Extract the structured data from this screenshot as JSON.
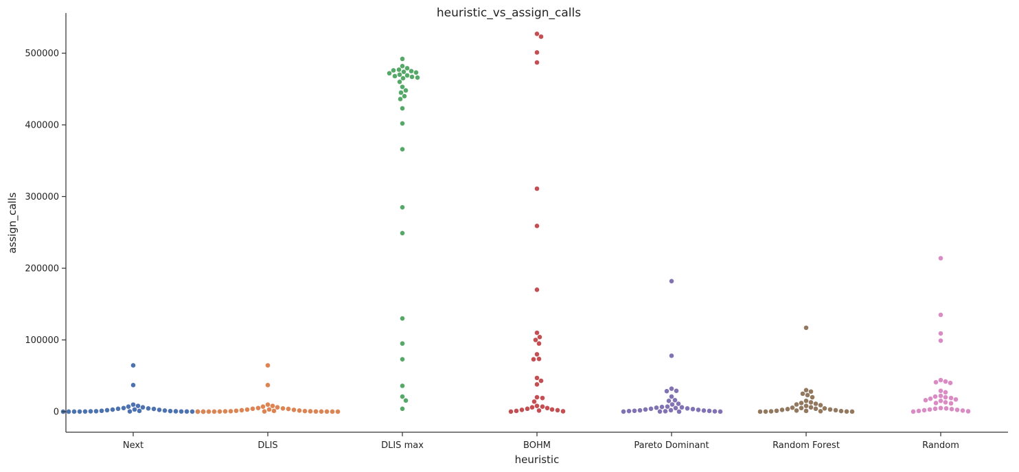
{
  "chart_data": {
    "type": "scatter",
    "subtype": "swarm",
    "title": "heuristic_vs_assign_calls",
    "xlabel": "heuristic",
    "ylabel": "assign_calls",
    "ylim": [
      -28000,
      553000
    ],
    "yticks": [
      0,
      100000,
      200000,
      300000,
      400000,
      500000
    ],
    "ytick_labels": [
      "0",
      "100000",
      "200000",
      "300000",
      "400000",
      "500000"
    ],
    "categories": [
      "Next",
      "DLIS",
      "DLIS max",
      "BOHM",
      "Pareto Dominant",
      "Random Forest",
      "Random"
    ],
    "colors": [
      "#4c72b0",
      "#dd8452",
      "#55a868",
      "#c44e52",
      "#8172b3",
      "#937860",
      "#da8bc3"
    ],
    "grid": false,
    "series": [
      {
        "name": "Next",
        "values": [
          64500,
          37000,
          9800,
          8000,
          7000,
          6000,
          5000,
          4500,
          4000,
          3800,
          3000,
          2800,
          2500,
          2000,
          1500,
          1200,
          1000,
          800,
          600,
          500,
          400,
          300,
          250,
          200,
          150,
          100,
          80,
          60,
          40,
          20,
          10,
          5
        ]
      },
      {
        "name": "DLIS",
        "values": [
          64500,
          37000,
          9800,
          8000,
          7000,
          6000,
          5000,
          4500,
          4000,
          3800,
          3000,
          2800,
          2500,
          2000,
          1500,
          1200,
          1000,
          800,
          600,
          500,
          400,
          300,
          250,
          200,
          150,
          100,
          80,
          60,
          40,
          20,
          10,
          5
        ]
      },
      {
        "name": "DLIS max",
        "values": [
          492000,
          482000,
          479000,
          477000,
          476000,
          475000,
          474000,
          473000,
          472000,
          470000,
          469000,
          468000,
          467000,
          466000,
          465000,
          460000,
          453000,
          448000,
          445000,
          440000,
          436000,
          423000,
          402000,
          366000,
          285000,
          249000,
          130000,
          95000,
          73000,
          36000,
          21000,
          15500,
          4000
        ]
      },
      {
        "name": "BOHM",
        "values": [
          527000,
          523000,
          501000,
          487000,
          311000,
          259000,
          170000,
          110000,
          104000,
          100000,
          95000,
          80000,
          73500,
          73000,
          47000,
          43000,
          38000,
          20000,
          19000,
          14000,
          8000,
          7000,
          6000,
          5000,
          4000,
          3000,
          2500,
          2000,
          1500,
          1000,
          500,
          100
        ]
      },
      {
        "name": "Pareto Dominant",
        "values": [
          182000,
          78000,
          32000,
          29000,
          28500,
          21000,
          16000,
          15000,
          11000,
          10000,
          7000,
          6500,
          6000,
          5500,
          5000,
          4500,
          4000,
          3500,
          3000,
          2500,
          2000,
          1800,
          1500,
          1200,
          1000,
          800,
          600,
          400,
          200,
          100,
          50,
          10
        ]
      },
      {
        "name": "Random Forest",
        "values": [
          117000,
          30000,
          28000,
          25000,
          23000,
          20000,
          15000,
          13000,
          12000,
          11000,
          10000,
          9000,
          8000,
          6000,
          5500,
          5000,
          4500,
          4000,
          3500,
          3000,
          2500,
          2000,
          1500,
          1200,
          1000,
          800,
          600,
          400,
          200,
          100,
          50,
          10
        ]
      },
      {
        "name": "Random",
        "values": [
          214000,
          135000,
          109000,
          99000,
          44000,
          42000,
          41000,
          40000,
          29000,
          27000,
          22000,
          21000,
          20000,
          19000,
          18000,
          17000,
          16000,
          15000,
          13000,
          12000,
          11500,
          5000,
          4500,
          4000,
          3500,
          3000,
          2500,
          2000,
          1500,
          1000,
          500,
          100
        ]
      }
    ]
  }
}
